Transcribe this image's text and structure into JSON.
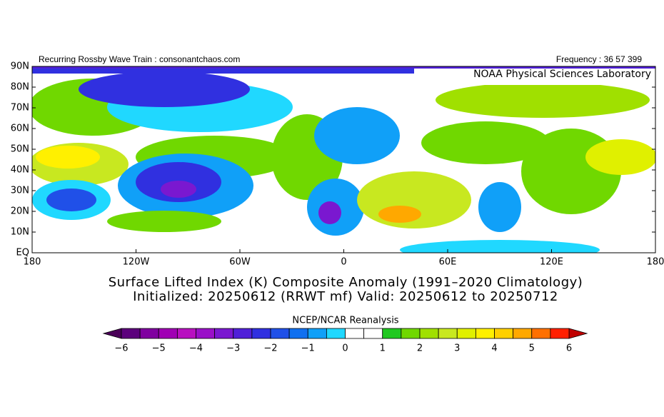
{
  "header": {
    "left": "Recurring Rossby Wave Train : consonantchaos.com",
    "right": "Frequency : 36 57 399",
    "lab": "NOAA Physical Sciences Laboratory"
  },
  "map": {
    "lat_labels": [
      "90N",
      "80N",
      "70N",
      "60N",
      "50N",
      "40N",
      "30N",
      "20N",
      "10N",
      "EQ"
    ],
    "lon_labels": [
      "180",
      "120W",
      "60W",
      "0",
      "60E",
      "120E",
      "180"
    ]
  },
  "title": {
    "line1": "Surface Lifted Index (K) Composite Anomaly (1991–2020 Climatology)",
    "line2": "Initialized: 20250612 (RRWT mf) Valid: 20250612 to 20250712"
  },
  "colorbar": {
    "source": "NCEP/NCAR Reanalysis",
    "labels": [
      "−6",
      "−5",
      "−4",
      "−3",
      "−2",
      "−1",
      "0",
      "1",
      "2",
      "3",
      "4",
      "5",
      "6"
    ],
    "low_color": "#4a0058",
    "high_color": "#c00000",
    "colors": [
      "#5c007c",
      "#8000a0",
      "#a000b4",
      "#b810c0",
      "#9a10c8",
      "#7a18d0",
      "#5020d8",
      "#3030e0",
      "#2050e8",
      "#1070f0",
      "#10a0f8",
      "#20d8ff",
      "#ffffff",
      "#ffffff",
      "#20c820",
      "#70d800",
      "#a0e000",
      "#c8e820",
      "#e0f000",
      "#fff000",
      "#ffd000",
      "#ffa800",
      "#ff7000",
      "#ff2000"
    ]
  }
}
